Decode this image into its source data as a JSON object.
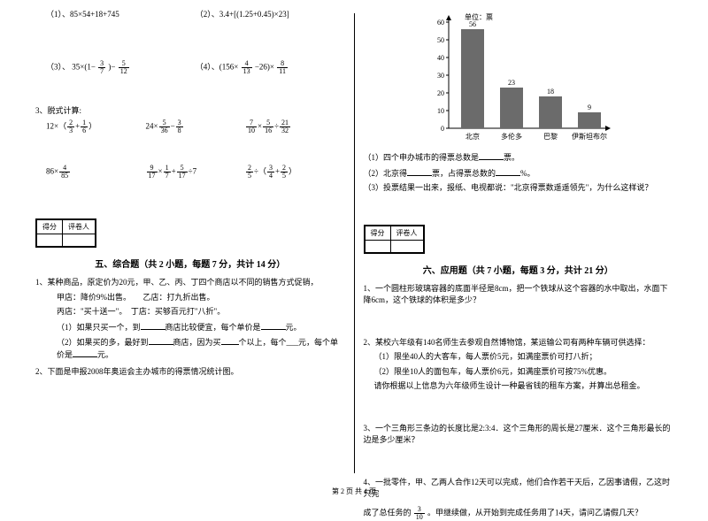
{
  "left": {
    "q1a": "（1）、85×54+18+745",
    "q1b": "（2）、3.4+[(1.25+0.45)×23]",
    "q1c_pre": "（3）、 35×(1−",
    "q1c_f1": {
      "n": "3",
      "d": "7"
    },
    "q1c_mid": ")−",
    "q1c_f2": {
      "n": "5",
      "d": "12"
    },
    "q1d_pre": "（4）、(156×",
    "q1d_f1": {
      "n": "4",
      "d": "13"
    },
    "q1d_mid": "−26)×",
    "q1d_f2": {
      "n": "8",
      "d": "11"
    },
    "q3_title": "3、脱式计算:",
    "r1a_pre": "12×（",
    "r1a_f1": {
      "n": "2",
      "d": "3"
    },
    "r1a_plus": "+",
    "r1a_f2": {
      "n": "1",
      "d": "6"
    },
    "r1a_post": "）",
    "r1b_pre": "24×",
    "r1b_f1": {
      "n": "5",
      "d": "36"
    },
    "r1b_mid": "−",
    "r1b_f2": {
      "n": "3",
      "d": "8"
    },
    "r1c_f1": {
      "n": "7",
      "d": "10"
    },
    "r1c_t": "×",
    "r1c_f2": {
      "n": "5",
      "d": "16"
    },
    "r1c_d": "÷",
    "r1c_f3": {
      "n": "21",
      "d": "32"
    },
    "r2a_pre": "86×",
    "r2a_f1": {
      "n": "4",
      "d": "85"
    },
    "r2b_f1": {
      "n": "9",
      "d": "17"
    },
    "r2b_t1": "×",
    "r2b_f2": {
      "n": "1",
      "d": "7"
    },
    "r2b_p": "+",
    "r2b_f3": {
      "n": "5",
      "d": "17"
    },
    "r2b_t2": "÷7",
    "r2c_f1": {
      "n": "2",
      "d": "5"
    },
    "r2c_d": "÷（",
    "r2c_f2": {
      "n": "3",
      "d": "4"
    },
    "r2c_p": "+",
    "r2c_f3": {
      "n": "2",
      "d": "5"
    },
    "r2c_post": "）",
    "score_h1": "得分",
    "score_h2": "评卷人",
    "sec5_title": "五、综合题（共 2 小题，每题 7 分，共计 14 分）",
    "p1_l1": "1、某种商品，原定价为20元，甲、乙、丙、丁四个商店以不同的销售方式促销，",
    "p1_l2": "甲店：降价9%出售。　　乙店：打九折出售。",
    "p1_l3": "丙店：\"买十送一\"。　丁店：买够百元打\"八折\"。",
    "p1_l4a": "（1）如果只买一个，到",
    "p1_l4b": "商店比较便宜，每个单价是",
    "p1_l4c": "元。",
    "p1_l5a": "（2）如果买的多，最好到",
    "p1_l5b": "商店，因为买",
    "p1_l5c": "个以上，每个___元，每个单价是",
    "p1_l5d": "元。",
    "p2": "2、下面是申报2008年奥运会主办城市的得票情况统计图。"
  },
  "right": {
    "chart": {
      "unit_label": "单位：票",
      "y_ticks": [
        0,
        10,
        20,
        30,
        40,
        50,
        60
      ],
      "bars": [
        {
          "label": "北京",
          "value": 56,
          "show": "56"
        },
        {
          "label": "多伦多",
          "value": 23,
          "show": "23"
        },
        {
          "label": "巴黎",
          "value": 18,
          "show": "18"
        },
        {
          "label": "伊斯坦布尔",
          "value": 9,
          "show": "9"
        }
      ],
      "bar_color": "#6b6b6b",
      "axis_color": "#000000",
      "font_size": 8
    },
    "cq1a": "（1）四个申办城市的得票总数是",
    "cq1b": "票。",
    "cq2a": "（2）北京得",
    "cq2b": "票，占得票总数的",
    "cq2c": "%。",
    "cq3": "（3）投票结果一出来，报纸、电视都说：\"北京得票数遥遥领先\"，为什么这样说？",
    "score_h1": "得分",
    "score_h2": "评卷人",
    "sec6_title": "六、应用题（共 7 小题，每题 3 分，共计 21 分）",
    "a1": "1、一个圆柱形玻璃容器的底面半径是8cm，把一个铁球从这个容器的水中取出，水面下降6cm，这个铁球的体积是多少？",
    "a2_l1": "2、某校六年级有140名师生去参观自然博物馆，某运输公司有两种车辆可供选择：",
    "a2_l2": "（1）限坐40人的大客车，每人票价5元，如满座票价可打八折；",
    "a2_l3": "（2）限坐10人的面包车，每人票价6元，如满座票价可按75%优惠。",
    "a2_l4": "请你根据以上信息为六年级师生设计一种最省钱的租车方案，并算出总租金。",
    "a3": "3、一个三角形三条边的长度比是2:3:4．这个三角形的周长是27厘米．这个三角形最长的边是多少厘米？",
    "a4_l1": "4、一批零件，甲、乙两人合作12天可以完成，他们合作若干天后，乙因事请假，乙这时只完",
    "a4_fr": {
      "n": "3",
      "d": "10"
    },
    "a4_l2a": "成了总任务的",
    "a4_l2b": "。甲继续做，从开始到完成任务用了14天，请问乙请假几天？"
  },
  "footer": "第 2 页 共 4 页"
}
